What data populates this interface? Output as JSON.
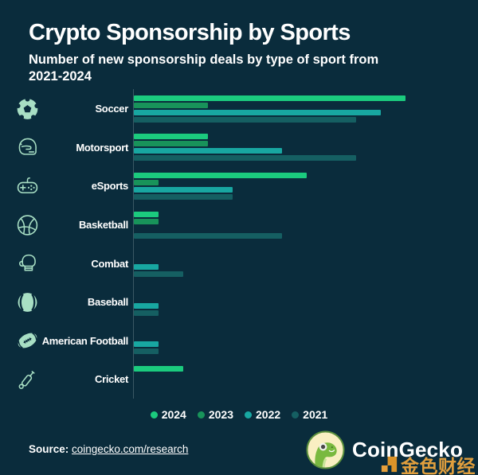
{
  "header": {
    "title": "Crypto Sponsorship by Sports",
    "subtitle": "Number of new sponsorship deals by type of sport from 2021-2024"
  },
  "chart_data": {
    "type": "bar",
    "orientation": "horizontal",
    "title": "Crypto Sponsorship by Sports",
    "subtitle": "Number of new sponsorship deals by type of sport from 2021-2024",
    "categories": [
      "Soccer",
      "Motorsport",
      "eSports",
      "Basketball",
      "Combat",
      "Baseball",
      "American Football",
      "Cricket"
    ],
    "icons": [
      "soccer-ball-icon",
      "racing-helmet-icon",
      "game-controller-icon",
      "basketball-icon",
      "boxing-glove-icon",
      "baseball-icon",
      "american-football-icon",
      "cricket-bat-icon"
    ],
    "series": [
      {
        "name": "2024",
        "color": "#1bcb7e",
        "values": [
          11,
          3,
          7,
          1,
          0,
          0,
          0,
          2
        ]
      },
      {
        "name": "2023",
        "color": "#18935a",
        "values": [
          3,
          3,
          1,
          1,
          0,
          0,
          0,
          0
        ]
      },
      {
        "name": "2022",
        "color": "#18a7a1",
        "values": [
          10,
          6,
          4,
          0,
          1,
          1,
          1,
          0
        ]
      },
      {
        "name": "2021",
        "color": "#155f62",
        "values": [
          9,
          9,
          4,
          6,
          2,
          1,
          1,
          0
        ]
      }
    ],
    "xlim": [
      0,
      11
    ],
    "value_axis_visible": false,
    "grid": false,
    "legend_position": "bottom"
  },
  "footer": {
    "source_label": "Source:",
    "source_link": "coingecko.com/research",
    "brand": "CoinGecko",
    "watermark": "金色财经"
  },
  "colors": {
    "background": "#0a2c3c",
    "icon_mint": "#a8dfc4",
    "axis_line": "#3b5864",
    "text": "#ffffff",
    "watermark_gold": "#eda63e"
  }
}
